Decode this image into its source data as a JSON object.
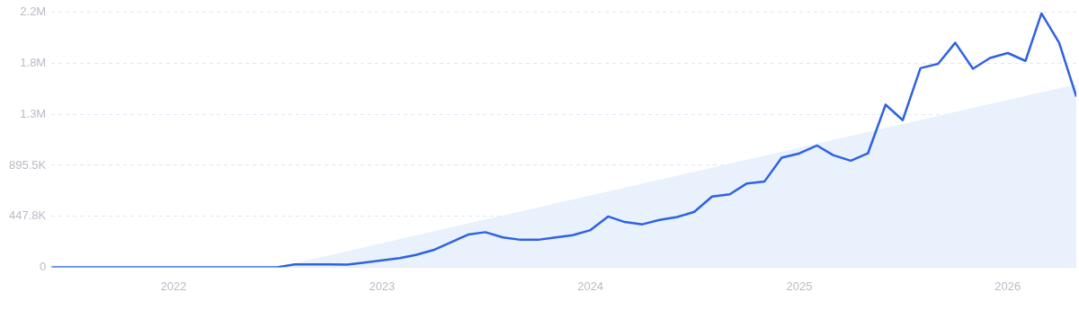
{
  "chart_data": {
    "type": "line",
    "xlim": [
      "2021-06",
      "2026-05"
    ],
    "xticks": [
      {
        "value": "2022",
        "label": "2022"
      },
      {
        "value": "2023",
        "label": "2023"
      },
      {
        "value": "2024",
        "label": "2024"
      },
      {
        "value": "2025",
        "label": "2025"
      },
      {
        "value": "2026",
        "label": "2026"
      }
    ],
    "ylim": [
      0,
      2238750
    ],
    "yticks": [
      0,
      {
        "value": 447750,
        "label": "447.8K"
      },
      {
        "value": 895500,
        "label": "895.5K"
      },
      {
        "value": 1343250,
        "label": "1.3M"
      },
      {
        "value": 1791000,
        "label": "1.8M"
      },
      {
        "value": 2238750,
        "label": "2.2M"
      }
    ],
    "grid": "y",
    "legend": false,
    "marker": "none",
    "line_style": "solid",
    "series": [
      {
        "type": "area",
        "color": "#e8f1fc",
        "x": [
          "2022-07",
          "2026-05"
        ],
        "values": [
          0,
          1608000
        ]
      },
      {
        "type": "line",
        "color": "#2e62e3",
        "x": [
          "2021-06",
          "2021-07",
          "2021-08",
          "2021-09",
          "2021-10",
          "2021-11",
          "2021-12",
          "2022-01",
          "2022-02",
          "2022-03",
          "2022-04",
          "2022-05",
          "2022-06",
          "2022-07",
          "2022-08",
          "2022-09",
          "2022-10",
          "2022-11",
          "2022-12",
          "2023-01",
          "2023-02",
          "2023-03",
          "2023-04",
          "2023-05",
          "2023-06",
          "2023-07",
          "2023-08",
          "2023-09",
          "2023-10",
          "2023-11",
          "2023-12",
          "2024-01",
          "2024-02",
          "2024-03",
          "2024-04",
          "2024-05",
          "2024-06",
          "2024-07",
          "2024-08",
          "2024-09",
          "2024-10",
          "2024-11",
          "2024-12",
          "2025-01",
          "2025-02",
          "2025-03",
          "2025-04",
          "2025-05",
          "2025-06",
          "2025-07",
          "2025-08",
          "2025-09",
          "2025-10",
          "2025-11",
          "2025-12",
          "2026-01",
          "2026-02",
          "2026-03",
          "2026-04",
          "2026-05"
        ],
        "values": [
          0,
          0,
          0,
          0,
          0,
          0,
          0,
          0,
          0,
          0,
          0,
          0,
          0,
          0,
          25000,
          25000,
          25000,
          23000,
          40000,
          60000,
          80000,
          108000,
          151000,
          218000,
          287000,
          308000,
          262000,
          241000,
          241000,
          262000,
          282000,
          326000,
          446000,
          397000,
          377000,
          415000,
          441000,
          487000,
          621000,
          641000,
          736000,
          754000,
          962000,
          1000000,
          1069000,
          985000,
          936000,
          1000000,
          1428000,
          1292000,
          1749000,
          1787000,
          1972000,
          1744000,
          1839000,
          1882000,
          1813000,
          2231000,
          1972000,
          1500000
        ]
      }
    ]
  }
}
